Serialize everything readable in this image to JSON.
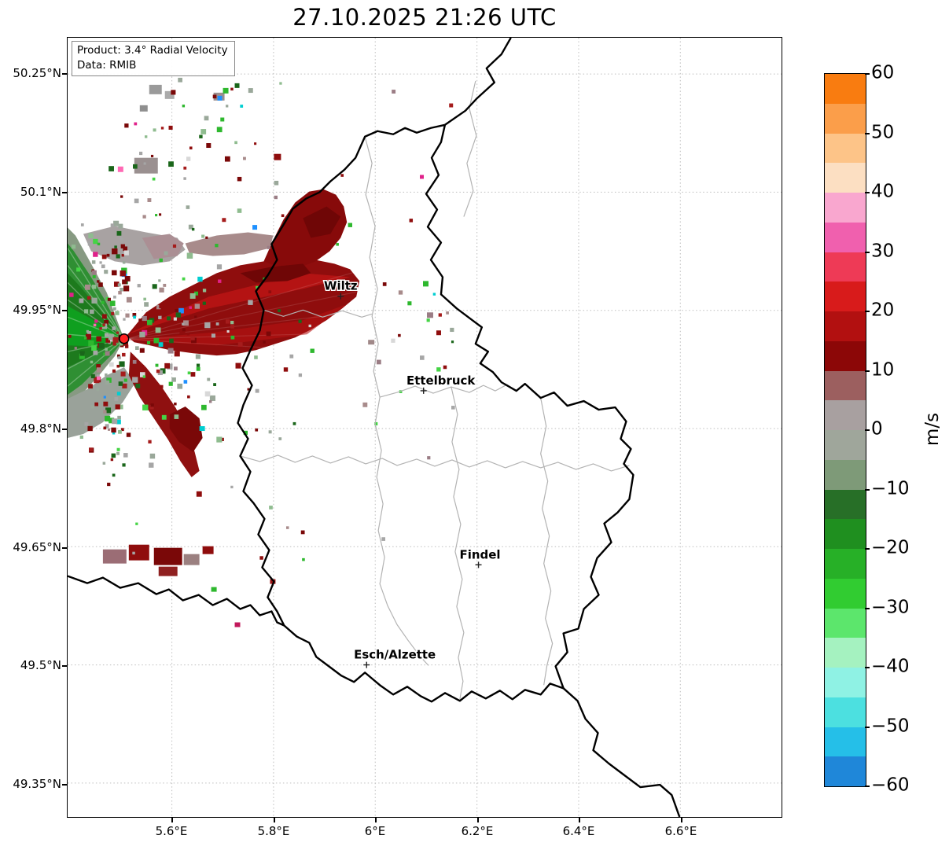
{
  "title": "27.10.2025 21:26 UTC",
  "info_box": {
    "product": "Product: 3.4° Radial Velocity",
    "data_source": "Data: RMIB"
  },
  "axes": {
    "x_ticks": [
      {
        "label": "5.6°E",
        "lon": 5.6
      },
      {
        "label": "5.8°E",
        "lon": 5.8
      },
      {
        "label": "6°E",
        "lon": 6.0
      },
      {
        "label": "6.2°E",
        "lon": 6.2
      },
      {
        "label": "6.4°E",
        "lon": 6.4
      },
      {
        "label": "6.6°E",
        "lon": 6.6
      }
    ],
    "y_ticks": [
      {
        "label": "50.25°N",
        "lat": 50.25
      },
      {
        "label": "50.1°N",
        "lat": 50.1
      },
      {
        "label": "49.95°N",
        "lat": 49.95
      },
      {
        "label": "49.8°N",
        "lat": 49.8
      },
      {
        "label": "49.65°N",
        "lat": 49.65
      },
      {
        "label": "49.5°N",
        "lat": 49.5
      },
      {
        "label": "49.35°N",
        "lat": 49.35
      }
    ],
    "lon_range": [
      5.395,
      6.799
    ],
    "lat_range": [
      49.307,
      50.296
    ]
  },
  "cities": [
    {
      "name": "Wiltz",
      "lon": 5.932,
      "lat": 49.968
    },
    {
      "name": "Ettelbruck",
      "lon": 6.095,
      "lat": 49.848
    },
    {
      "name": "Findel",
      "lon": 6.203,
      "lat": 49.627
    },
    {
      "name": "Esch/Alzette",
      "lon": 5.983,
      "lat": 49.5
    }
  ],
  "radar_site": {
    "lon": 5.506,
    "lat": 49.914,
    "marker_color": "#ff2020"
  },
  "colorbar": {
    "unit": "m/s",
    "min": -60,
    "max": 60,
    "ticks": [
      {
        "label": "60",
        "value": 60
      },
      {
        "label": "50",
        "value": 50
      },
      {
        "label": "40",
        "value": 40
      },
      {
        "label": "30",
        "value": 30
      },
      {
        "label": "20",
        "value": 20
      },
      {
        "label": "10",
        "value": 10
      },
      {
        "label": "0",
        "value": 0
      },
      {
        "label": "−10",
        "value": -10
      },
      {
        "label": "−20",
        "value": -20
      },
      {
        "label": "−30",
        "value": -30
      },
      {
        "label": "−40",
        "value": -40
      },
      {
        "label": "−50",
        "value": -50
      },
      {
        "label": "−60",
        "value": -60
      }
    ],
    "segments": [
      {
        "from": 55,
        "to": 60,
        "color": "#f97c10"
      },
      {
        "from": 50,
        "to": 55,
        "color": "#fb9e4a"
      },
      {
        "from": 45,
        "to": 50,
        "color": "#fdc488"
      },
      {
        "from": 40,
        "to": 45,
        "color": "#fcdfc2"
      },
      {
        "from": 35,
        "to": 40,
        "color": "#f9a7cf"
      },
      {
        "from": 30,
        "to": 35,
        "color": "#f060ae"
      },
      {
        "from": 25,
        "to": 30,
        "color": "#ee3a56"
      },
      {
        "from": 20,
        "to": 25,
        "color": "#d81b1b"
      },
      {
        "from": 15,
        "to": 20,
        "color": "#b21010"
      },
      {
        "from": 10,
        "to": 15,
        "color": "#8c0707"
      },
      {
        "from": 5,
        "to": 10,
        "color": "#9c5f5f"
      },
      {
        "from": 0,
        "to": 5,
        "color": "#a8a0a0"
      },
      {
        "from": -5,
        "to": 0,
        "color": "#9fa69b"
      },
      {
        "from": -10,
        "to": -5,
        "color": "#7e9a78"
      },
      {
        "from": -15,
        "to": -10,
        "color": "#276f27"
      },
      {
        "from": -20,
        "to": -15,
        "color": "#1f8f1f"
      },
      {
        "from": -25,
        "to": -20,
        "color": "#27b027"
      },
      {
        "from": -30,
        "to": -25,
        "color": "#31cc31"
      },
      {
        "from": -35,
        "to": -30,
        "color": "#5ce66c"
      },
      {
        "from": -40,
        "to": -35,
        "color": "#a5f2c0"
      },
      {
        "from": -45,
        "to": -40,
        "color": "#8ff2e4"
      },
      {
        "from": -50,
        "to": -45,
        "color": "#4ce0e0"
      },
      {
        "from": -55,
        "to": -50,
        "color": "#25bfe8"
      },
      {
        "from": -60,
        "to": -55,
        "color": "#1f87d9"
      }
    ]
  }
}
